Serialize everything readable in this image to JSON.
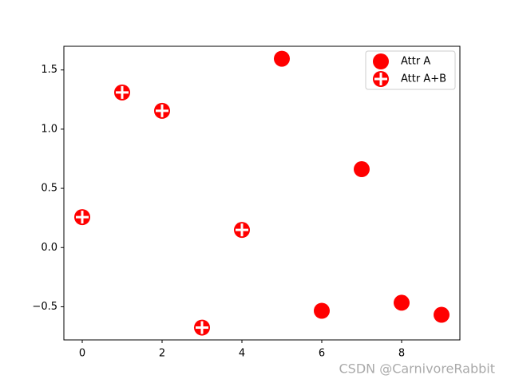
{
  "chart_data": {
    "type": "scatter",
    "series": [
      {
        "name": "Attr A",
        "color": "#ff0000",
        "marker": "circle",
        "x": [
          5,
          6,
          7,
          8,
          9
        ],
        "values": [
          1.595,
          -0.534,
          0.662,
          -0.466,
          -0.568
        ]
      },
      {
        "name": "Attr A+B",
        "color": "#ff0000",
        "marker": "circle-plus",
        "x": [
          0,
          1,
          2,
          3,
          4
        ],
        "values": [
          0.257,
          1.31,
          1.155,
          -0.676,
          0.149
        ]
      }
    ],
    "xlim": [
      -0.46,
      9.46
    ],
    "xticks": [
      0,
      2,
      4,
      6,
      8
    ],
    "ylim": [
      -0.78,
      1.7
    ],
    "yticks": [
      {
        "value": -0.5,
        "label": "−0.5"
      },
      {
        "value": 0,
        "label": "0.0"
      },
      0.5,
      {
        "value": 1,
        "label": "1.0"
      },
      1.5
    ],
    "legend": "upper right",
    "watermark": "CSDN @CarnivoreRabbit"
  }
}
